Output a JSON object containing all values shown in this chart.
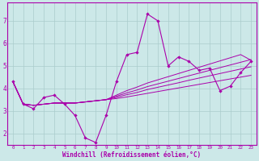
{
  "xlabel": "Windchill (Refroidissement éolien,°C)",
  "bg_color": "#cce8e8",
  "line_color": "#aa00aa",
  "grid_color": "#aacccc",
  "xlim": [
    -0.5,
    23.5
  ],
  "ylim": [
    1.5,
    7.8
  ],
  "xticks": [
    0,
    1,
    2,
    3,
    4,
    5,
    6,
    7,
    8,
    9,
    10,
    11,
    12,
    13,
    14,
    15,
    16,
    17,
    18,
    19,
    20,
    21,
    22,
    23
  ],
  "yticks": [
    2,
    3,
    4,
    5,
    6,
    7
  ],
  "main_series": [
    4.3,
    3.3,
    3.1,
    3.6,
    3.7,
    3.3,
    2.8,
    1.8,
    1.6,
    2.8,
    4.3,
    5.5,
    5.6,
    7.3,
    7.0,
    5.0,
    5.4,
    5.2,
    4.8,
    4.9,
    3.9,
    4.1,
    4.7,
    5.2
  ],
  "trend_lines": [
    [
      4.3,
      3.3,
      3.25,
      3.3,
      3.35,
      3.35,
      3.35,
      3.4,
      3.45,
      3.5,
      3.55,
      3.62,
      3.7,
      3.78,
      3.86,
      3.94,
      4.02,
      4.1,
      4.18,
      4.26,
      4.34,
      4.42,
      4.5,
      4.58
    ],
    [
      4.3,
      3.3,
      3.25,
      3.3,
      3.35,
      3.35,
      3.35,
      3.4,
      3.45,
      3.5,
      3.6,
      3.72,
      3.82,
      3.95,
      4.05,
      4.15,
      4.25,
      4.36,
      4.46,
      4.56,
      4.66,
      4.76,
      4.86,
      4.96
    ],
    [
      4.3,
      3.3,
      3.25,
      3.3,
      3.35,
      3.35,
      3.35,
      3.4,
      3.45,
      3.5,
      3.65,
      3.8,
      3.93,
      4.08,
      4.2,
      4.32,
      4.44,
      4.56,
      4.68,
      4.8,
      4.92,
      5.04,
      5.16,
      5.28
    ],
    [
      4.3,
      3.3,
      3.25,
      3.3,
      3.35,
      3.35,
      3.35,
      3.4,
      3.45,
      3.5,
      3.7,
      3.9,
      4.06,
      4.24,
      4.38,
      4.52,
      4.66,
      4.8,
      4.94,
      5.08,
      5.22,
      5.36,
      5.5,
      5.25
    ]
  ]
}
